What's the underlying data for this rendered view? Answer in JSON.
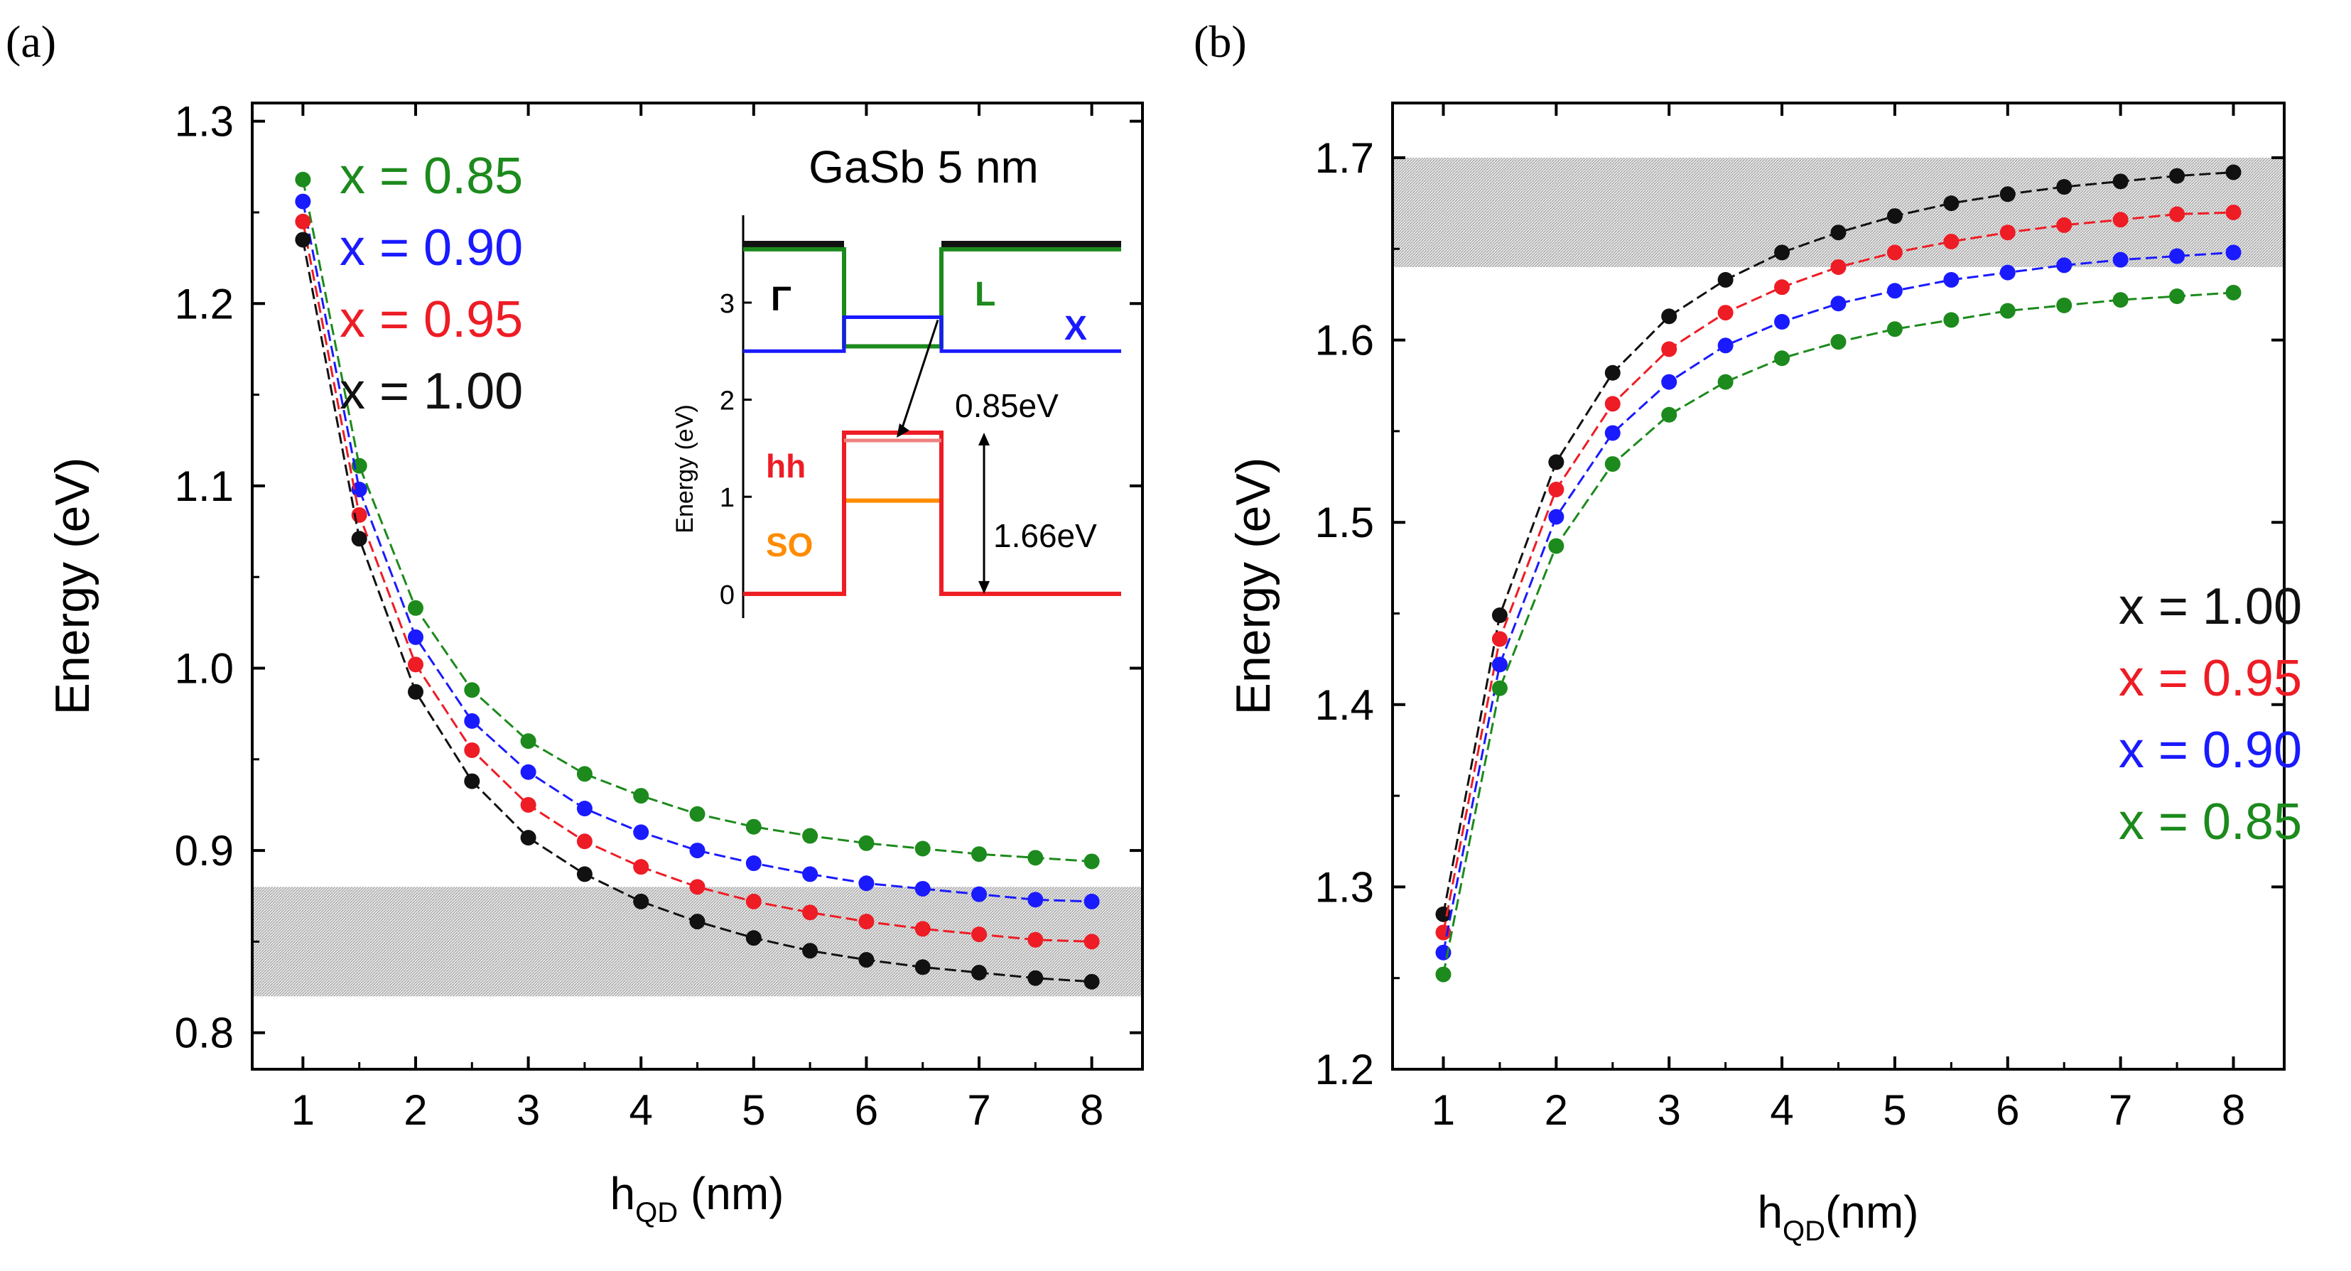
{
  "colors": {
    "black": "#111111",
    "red": "#ee1c25",
    "blue": "#1a1aff",
    "green": "#1c8a1c",
    "orange": "#ff8c00",
    "band": "#d2d2d2"
  },
  "chart_data": [
    {
      "id": "a",
      "type": "line",
      "panel_label": "(a)",
      "ylabel": "Energy (eV)",
      "xlabel_main": "h",
      "xlabel_sub": "QD",
      "xlabel_unit": " (nm)",
      "xlim": [
        0.55,
        8.45
      ],
      "ylim": [
        0.78,
        1.31
      ],
      "xticks": [
        1,
        2,
        3,
        4,
        5,
        6,
        7,
        8
      ],
      "yticks": [
        0.8,
        0.9,
        1.0,
        1.1,
        1.2,
        1.3
      ],
      "ytick_labels": [
        "0.8",
        "0.9",
        "1.0",
        "1.1",
        "1.2",
        "1.3"
      ],
      "shaded_band": [
        0.82,
        0.88
      ],
      "x": [
        1,
        1.5,
        2,
        2.5,
        3,
        3.5,
        4,
        4.5,
        5,
        5.5,
        6,
        6.5,
        7,
        7.5,
        8
      ],
      "series": [
        {
          "name": "x = 0.85",
          "color": "green",
          "values": [
            1.268,
            1.111,
            1.033,
            0.988,
            0.96,
            0.942,
            0.93,
            0.92,
            0.913,
            0.908,
            0.904,
            0.901,
            0.898,
            0.896,
            0.894
          ]
        },
        {
          "name": "x = 0.90",
          "color": "blue",
          "values": [
            1.256,
            1.098,
            1.017,
            0.971,
            0.943,
            0.923,
            0.91,
            0.9,
            0.893,
            0.887,
            0.882,
            0.879,
            0.876,
            0.873,
            0.872
          ]
        },
        {
          "name": "x = 0.95",
          "color": "red",
          "values": [
            1.245,
            1.084,
            1.002,
            0.955,
            0.925,
            0.905,
            0.891,
            0.88,
            0.872,
            0.866,
            0.861,
            0.857,
            0.854,
            0.851,
            0.85
          ]
        },
        {
          "name": "x = 1.00",
          "color": "black",
          "values": [
            1.235,
            1.071,
            0.987,
            0.938,
            0.907,
            0.887,
            0.872,
            0.861,
            0.852,
            0.845,
            0.84,
            0.836,
            0.833,
            0.83,
            0.828
          ]
        }
      ],
      "legend": [
        "x = 0.85",
        "x = 0.90",
        "x = 0.95",
        "x = 1.00"
      ],
      "legend_position": "top-left",
      "inset": {
        "title": "GaSb 5 nm",
        "ylabel": "Energy (eV)",
        "ylim": [
          -0.25,
          3.9
        ],
        "yticks": [
          0,
          1,
          2,
          3
        ],
        "ytick_labels": [
          "0",
          "1",
          "2",
          "3"
        ],
        "labels": {
          "gamma": "Γ",
          "l": "L",
          "x": "X",
          "hh": "hh",
          "so": "SO"
        },
        "annotations": {
          "gap": "0.85eV",
          "offset": "1.66eV"
        },
        "levels": {
          "gamma_barrier": 3.6,
          "gamma_well_bottom": 2.5,
          "l_barrier": 3.55,
          "l_well": 2.55,
          "x_barrier": 2.5,
          "x_well": 2.85,
          "hh_well": 1.66,
          "hh_level": 1.58,
          "so_well": 0.96,
          "barrier_zero": 0.0
        }
      }
    },
    {
      "id": "b",
      "type": "line",
      "panel_label": "(b)",
      "ylabel": "Energy (eV)",
      "xlabel_main": "h",
      "xlabel_sub": "QD",
      "xlabel_unit": "(nm)",
      "xlim": [
        0.55,
        8.45
      ],
      "ylim": [
        1.2,
        1.73
      ],
      "xticks": [
        1,
        2,
        3,
        4,
        5,
        6,
        7,
        8
      ],
      "yticks": [
        1.2,
        1.3,
        1.4,
        1.5,
        1.6,
        1.7
      ],
      "ytick_labels": [
        "1.2",
        "1.3",
        "1.4",
        "1.5",
        "1.6",
        "1.7"
      ],
      "shaded_band": [
        1.64,
        1.7
      ],
      "x": [
        1,
        1.5,
        2,
        2.5,
        3,
        3.5,
        4,
        4.5,
        5,
        5.5,
        6,
        6.5,
        7,
        7.5,
        8
      ],
      "series": [
        {
          "name": "x = 1.00",
          "color": "black",
          "values": [
            1.285,
            1.449,
            1.533,
            1.582,
            1.613,
            1.633,
            1.648,
            1.659,
            1.668,
            1.675,
            1.68,
            1.684,
            1.687,
            1.69,
            1.692
          ]
        },
        {
          "name": "x = 0.95",
          "color": "red",
          "values": [
            1.275,
            1.436,
            1.518,
            1.565,
            1.595,
            1.615,
            1.629,
            1.64,
            1.648,
            1.654,
            1.659,
            1.663,
            1.666,
            1.669,
            1.67
          ]
        },
        {
          "name": "x = 0.90",
          "color": "blue",
          "values": [
            1.264,
            1.422,
            1.503,
            1.549,
            1.577,
            1.597,
            1.61,
            1.62,
            1.627,
            1.633,
            1.637,
            1.641,
            1.644,
            1.646,
            1.648
          ]
        },
        {
          "name": "x = 0.85",
          "color": "green",
          "values": [
            1.252,
            1.409,
            1.487,
            1.532,
            1.559,
            1.577,
            1.59,
            1.599,
            1.606,
            1.611,
            1.616,
            1.619,
            1.622,
            1.624,
            1.626
          ]
        }
      ],
      "legend": [
        "x = 1.00",
        "x = 0.95",
        "x = 0.90",
        "x = 0.85"
      ],
      "legend_position": "bottom-right"
    }
  ]
}
